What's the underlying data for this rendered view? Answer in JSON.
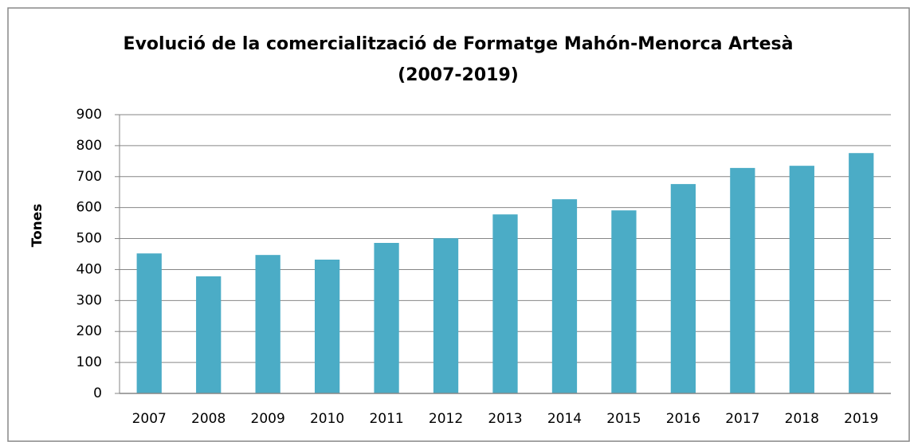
{
  "chart_data": {
    "type": "bar",
    "title": [
      "Evolució de la comercialització de Formatge Mahón-Menorca Artesà",
      "(2007-2019)"
    ],
    "y_label": "Tones",
    "categories": [
      "2007",
      "2008",
      "2009",
      "2010",
      "2011",
      "2012",
      "2013",
      "2014",
      "2015",
      "2016",
      "2017",
      "2018",
      "2019"
    ],
    "values": [
      452,
      378,
      447,
      432,
      486,
      501,
      578,
      627,
      591,
      676,
      728,
      735,
      776
    ],
    "color": "#4bacc6",
    "ylim": [
      0,
      900
    ],
    "yticks": [
      0,
      100,
      200,
      300,
      400,
      500,
      600,
      700,
      800,
      900
    ],
    "grid": true
  }
}
